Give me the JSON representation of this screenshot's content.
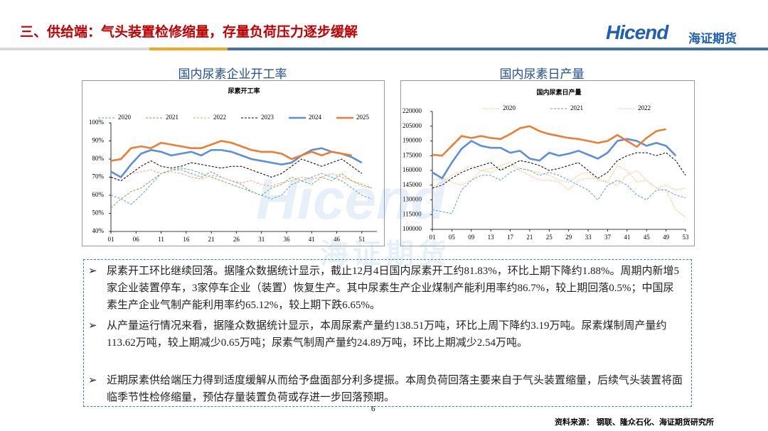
{
  "header": {
    "title": "三、供给端：气头装置检修缩量，存量负荷压力逐步缓解",
    "logo_brand": "Hicend",
    "logo_name": "海证期货"
  },
  "watermark": {
    "brand": "Hicend",
    "name": "海证期货"
  },
  "chart_data": [
    {
      "type": "line",
      "heading": "国内尿素企业开工率",
      "title": "尿素开工率",
      "x": [
        1,
        3,
        5,
        7,
        9,
        11,
        13,
        15,
        17,
        19,
        21,
        23,
        25,
        27,
        29,
        31,
        33,
        35,
        37,
        39,
        41,
        43,
        45,
        47,
        49,
        51,
        53
      ],
      "xlim": [
        1,
        54
      ],
      "xticks": [
        {
          "value": 1,
          "label": "01"
        },
        {
          "value": 6,
          "label": "06"
        },
        11,
        16,
        21,
        26,
        31,
        36,
        41,
        46,
        51
      ],
      "ylim": [
        40,
        100
      ],
      "yticks": [
        {
          "value": 40,
          "label": "40%"
        },
        {
          "value": 50,
          "label": "50%"
        },
        {
          "value": 60,
          "label": "60%"
        },
        {
          "value": 70,
          "label": "70%"
        },
        {
          "value": 80,
          "label": "80%"
        },
        {
          "value": 90,
          "label": "90%"
        },
        {
          "value": 100,
          "label": "100%"
        }
      ],
      "series": [
        {
          "name": "2020",
          "color": "#5b9bd5",
          "style": "dashed",
          "values": [
            60,
            58,
            55,
            60,
            66,
            72,
            74,
            74,
            72,
            70,
            73,
            70,
            68,
            66,
            62,
            60,
            58,
            60,
            66,
            68,
            70,
            72,
            70,
            68,
            64,
            60,
            58
          ]
        },
        {
          "name": "2021",
          "color": "#70ad47",
          "style": "dashed",
          "values": [
            53,
            58,
            62,
            64,
            68,
            72,
            74,
            75,
            74,
            72,
            70,
            68,
            66,
            64,
            62,
            60,
            64,
            66,
            70,
            68,
            66,
            70,
            68,
            72,
            68,
            66,
            64
          ]
        },
        {
          "name": "2022",
          "color": "#f4a070",
          "style": "dashed",
          "values": [
            70,
            68,
            72,
            73,
            74,
            72,
            73,
            72,
            70,
            69,
            71,
            70,
            68,
            67,
            68,
            66,
            65,
            67,
            68,
            70,
            69,
            70,
            72,
            70,
            68,
            65,
            64
          ]
        },
        {
          "name": "2023",
          "color": "#000000",
          "style": "dashed",
          "values": [
            70,
            68,
            72,
            76,
            79,
            76,
            75,
            76,
            78,
            77,
            76,
            75,
            76,
            76,
            74,
            72,
            70,
            72,
            76,
            80,
            78,
            76,
            78,
            80,
            76,
            72,
            null
          ]
        },
        {
          "name": "2024",
          "color": "#5b8fd9",
          "style": "solid",
          "values": [
            73,
            70,
            77,
            83,
            85,
            84,
            82,
            83,
            84,
            82,
            85,
            85,
            84,
            82,
            80,
            79,
            78,
            77,
            78,
            82,
            85,
            86,
            84,
            83,
            81,
            78,
            null
          ]
        },
        {
          "name": "2025",
          "color": "#ed7d31",
          "style": "solid",
          "values": [
            79,
            80,
            86,
            87,
            86,
            89,
            88,
            87,
            86,
            86,
            88,
            90,
            89,
            87,
            85,
            84,
            84,
            83,
            80,
            82,
            84,
            82,
            84,
            83,
            82,
            null,
            null
          ]
        }
      ]
    },
    {
      "type": "line",
      "heading": "国内尿素日产量",
      "title": "国内尿素日产量",
      "x": [
        1,
        3,
        5,
        7,
        9,
        11,
        13,
        15,
        17,
        19,
        21,
        23,
        25,
        27,
        29,
        31,
        33,
        35,
        37,
        39,
        41,
        43,
        45,
        47,
        49,
        51,
        53
      ],
      "xlim": [
        1,
        53
      ],
      "xticks": [
        {
          "value": 1,
          "label": "01"
        },
        {
          "value": 5,
          "label": "05"
        },
        {
          "value": 9,
          "label": "09"
        },
        13,
        17,
        21,
        25,
        29,
        33,
        37,
        41,
        45,
        49,
        53
      ],
      "ylim": [
        100000,
        220000
      ],
      "yticks": [
        100000,
        115000,
        130000,
        145000,
        160000,
        175000,
        190000,
        205000,
        220000
      ],
      "series": [
        {
          "name": "2020",
          "color": "#f2c14e",
          "style": "dotted",
          "values": [
            150000,
            152000,
            148000,
            145000,
            150000,
            160000,
            162000,
            165000,
            168000,
            162000,
            160000,
            158000,
            155000,
            150000,
            148000,
            155000,
            158000,
            150000,
            148000,
            165000,
            160000,
            148000,
            150000,
            142000,
            140000,
            120000,
            112000
          ]
        },
        {
          "name": "2021",
          "color": "#5b9bd5",
          "style": "dashed",
          "values": [
            120000,
            118000,
            116000,
            140000,
            150000,
            155000,
            155000,
            150000,
            158000,
            162000,
            160000,
            155000,
            158000,
            155000,
            150000,
            145000,
            140000,
            130000,
            145000,
            150000,
            145000,
            135000,
            130000,
            140000,
            140000,
            135000,
            132000
          ]
        },
        {
          "name": "2022",
          "color": "#f4b183",
          "style": "dotted",
          "values": [
            143000,
            148000,
            155000,
            160000,
            165000,
            160000,
            158000,
            162000,
            165000,
            160000,
            155000,
            150000,
            150000,
            148000,
            140000,
            150000,
            152000,
            152000,
            148000,
            145000,
            155000,
            160000,
            150000,
            142000,
            145000,
            140000,
            142000
          ]
        },
        {
          "color": "#000000",
          "style": "dashed",
          "values": [
            142000,
            145000,
            152000,
            158000,
            162000,
            165000,
            168000,
            160000,
            165000,
            170000,
            168000,
            165000,
            160000,
            162000,
            165000,
            168000,
            160000,
            152000,
            158000,
            170000,
            175000,
            178000,
            178000,
            175000,
            178000,
            170000,
            155000
          ]
        },
        {
          "color": "#5b8fd9",
          "style": "solid",
          "values": [
            158000,
            152000,
            168000,
            182000,
            190000,
            185000,
            183000,
            183000,
            178000,
            180000,
            172000,
            170000,
            178000,
            175000,
            177000,
            180000,
            176000,
            172000,
            178000,
            190000,
            192000,
            190000,
            185000,
            188000,
            185000,
            175000,
            null
          ]
        },
        {
          "color": "#ed7d31",
          "style": "solid",
          "values": [
            176000,
            175000,
            185000,
            195000,
            193000,
            195000,
            193000,
            192000,
            197000,
            203000,
            205000,
            200000,
            197000,
            195000,
            193000,
            192000,
            190000,
            188000,
            190000,
            196000,
            190000,
            184000,
            193000,
            200000,
            202000,
            null,
            null
          ]
        }
      ]
    }
  ],
  "bullets": [
    "尿素开工环比继续回落。据隆众数据统计显示，截止12月4日国内尿素开工约81.83%，环比上期下降约1.88%。周期内新增5家企业装置停车，3家停车企业（装置）恢复生产。其中尿素生产企业煤制产能利用率约86.7%，较上期回落0.5%；中国尿素生产企业气制产能利用率约65.12%，较上期下跌6.65%。",
    "从产量运行情况来看，据隆众数据统计显示，本周尿素产量约138.51万吨，环比上周下降约3.19万吨。尿素煤制周产量约113.62万吨，较上期减少0.65万吨；尿素气制周产量约24.89万吨，环比上期减少2.54万吨。",
    "近期尿素供给端压力得到适度缓解从而给予盘面部分利多提振。本周负荷回落主要来自于气头装置缩量，后续气头装置将面临季节性检修缩量，预估存量装置负荷或存进一步回落预期。"
  ],
  "bullet_marker": "➢",
  "page_number": "6",
  "source": "资料来源：  钢联、隆众石化、海证期货研究所"
}
